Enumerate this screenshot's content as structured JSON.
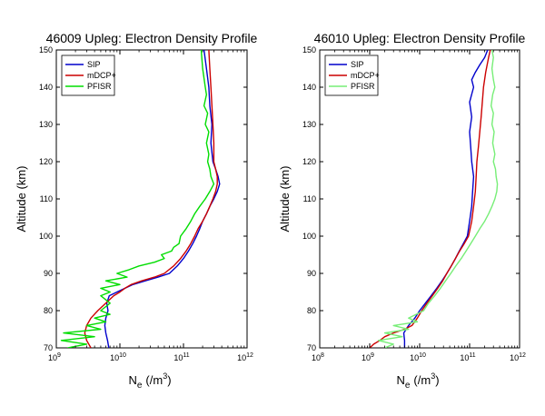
{
  "chart_data": [
    {
      "type": "line",
      "title": "46009 Upleg: Electron Density Profile",
      "xlabel": "N",
      "xlabel_sub": "e",
      "xlabel_unit": "(/m",
      "xlabel_unit_sup": "3",
      "xlabel_unit_end": ")",
      "ylabel": "Altitude (km)",
      "xscale": "log",
      "xlim_exp": [
        9,
        12
      ],
      "ylim": [
        70,
        150
      ],
      "yticks": [
        "70",
        "80",
        "90",
        "100",
        "110",
        "120",
        "130",
        "140",
        "150"
      ],
      "xticks": [
        {
          "base": "10",
          "exp": "9"
        },
        {
          "base": "10",
          "exp": "10"
        },
        {
          "base": "10",
          "exp": "11"
        },
        {
          "base": "10",
          "exp": "12"
        }
      ],
      "legend_position": "top-left",
      "series": [
        {
          "name": "SIP",
          "color": "#0000cc",
          "points": [
            [
              6700000000.0,
              70
            ],
            [
              6400000000.0,
              72
            ],
            [
              6000000000.0,
              74
            ],
            [
              5800000000.0,
              76
            ],
            [
              6000000000.0,
              78
            ],
            [
              6500000000.0,
              80
            ],
            [
              6200000000.0,
              82
            ],
            [
              6800000000.0,
              84
            ],
            [
              9000000000.0,
              85
            ],
            [
              12000000000.0,
              86
            ],
            [
              16000000000.0,
              87
            ],
            [
              25000000000.0,
              88
            ],
            [
              40000000000.0,
              89
            ],
            [
              60000000000.0,
              90
            ],
            [
              80000000000.0,
              92
            ],
            [
              100000000000.0,
              94
            ],
            [
              120000000000.0,
              96
            ],
            [
              140000000000.0,
              98
            ],
            [
              160000000000.0,
              100
            ],
            [
              180000000000.0,
              102
            ],
            [
              200000000000.0,
              104
            ],
            [
              230000000000.0,
              106
            ],
            [
              260000000000.0,
              108
            ],
            [
              300000000000.0,
              110
            ],
            [
              340000000000.0,
              112
            ],
            [
              370000000000.0,
              114
            ],
            [
              350000000000.0,
              116
            ],
            [
              320000000000.0,
              118
            ],
            [
              290000000000.0,
              120
            ],
            [
              270000000000.0,
              125
            ],
            [
              280000000000.0,
              130
            ],
            [
              260000000000.0,
              135
            ],
            [
              250000000000.0,
              140
            ],
            [
              230000000000.0,
              145
            ],
            [
              210000000000.0,
              150
            ]
          ]
        },
        {
          "name": "mDCP+",
          "color": "#cc0000",
          "points": [
            [
              3500000000.0,
              70
            ],
            [
              3000000000.0,
              72
            ],
            [
              2800000000.0,
              74
            ],
            [
              3000000000.0,
              76
            ],
            [
              3500000000.0,
              78
            ],
            [
              4500000000.0,
              80
            ],
            [
              6000000000.0,
              82
            ],
            [
              8000000000.0,
              84
            ],
            [
              10000000000.0,
              85
            ],
            [
              12000000000.0,
              86
            ],
            [
              15000000000.0,
              87
            ],
            [
              22000000000.0,
              88
            ],
            [
              35000000000.0,
              89
            ],
            [
              50000000000.0,
              90
            ],
            [
              70000000000.0,
              92
            ],
            [
              90000000000.0,
              94
            ],
            [
              110000000000.0,
              96
            ],
            [
              130000000000.0,
              98
            ],
            [
              150000000000.0,
              100
            ],
            [
              170000000000.0,
              102
            ],
            [
              200000000000.0,
              104
            ],
            [
              230000000000.0,
              106
            ],
            [
              260000000000.0,
              108
            ],
            [
              290000000000.0,
              110
            ],
            [
              320000000000.0,
              112
            ],
            [
              340000000000.0,
              114
            ],
            [
              340000000000.0,
              116
            ],
            [
              320000000000.0,
              118
            ],
            [
              300000000000.0,
              120
            ],
            [
              300000000000.0,
              125
            ],
            [
              290000000000.0,
              130
            ],
            [
              280000000000.0,
              135
            ],
            [
              270000000000.0,
              140
            ],
            [
              260000000000.0,
              145
            ],
            [
              250000000000.0,
              150
            ]
          ]
        },
        {
          "name": "PFISR",
          "color": "#00dd00",
          "points": [
            [
              1500000000.0,
              70
            ],
            [
              3000000000.0,
              71
            ],
            [
              1200000000.0,
              72
            ],
            [
              4000000000.0,
              73
            ],
            [
              1300000000.0,
              74
            ],
            [
              5000000000.0,
              75
            ],
            [
              3000000000.0,
              76
            ],
            [
              6000000000.0,
              77
            ],
            [
              4000000000.0,
              78
            ],
            [
              7000000000.0,
              79
            ],
            [
              5000000000.0,
              80
            ],
            [
              7000000000.0,
              82
            ],
            [
              5000000000.0,
              84
            ],
            [
              7000000000.0,
              85
            ],
            [
              5000000000.0,
              86
            ],
            [
              10000000000.0,
              87
            ],
            [
              6000000000.0,
              88
            ],
            [
              13000000000.0,
              89
            ],
            [
              9000000000.0,
              90
            ],
            [
              14000000000.0,
              91
            ],
            [
              20000000000.0,
              92
            ],
            [
              35000000000.0,
              93
            ],
            [
              50000000000.0,
              94
            ],
            [
              45000000000.0,
              95
            ],
            [
              65000000000.0,
              96
            ],
            [
              70000000000.0,
              97
            ],
            [
              85000000000.0,
              98
            ],
            [
              90000000000.0,
              100
            ],
            [
              110000000000.0,
              102
            ],
            [
              130000000000.0,
              104
            ],
            [
              150000000000.0,
              106
            ],
            [
              180000000000.0,
              108
            ],
            [
              220000000000.0,
              110
            ],
            [
              260000000000.0,
              112
            ],
            [
              300000000000.0,
              114
            ],
            [
              270000000000.0,
              116
            ],
            [
              260000000000.0,
              118
            ],
            [
              240000000000.0,
              120
            ],
            [
              250000000000.0,
              122
            ],
            [
              230000000000.0,
              125
            ],
            [
              250000000000.0,
              128
            ],
            [
              220000000000.0,
              130
            ],
            [
              240000000000.0,
              133
            ],
            [
              210000000000.0,
              135
            ],
            [
              230000000000.0,
              138
            ],
            [
              220000000000.0,
              140
            ],
            [
              200000000000.0,
              145
            ],
            [
              190000000000.0,
              150
            ]
          ]
        }
      ]
    },
    {
      "type": "line",
      "title": "46010 Upleg: Electron Density Profile",
      "xlabel": "N",
      "xlabel_sub": "e",
      "xlabel_unit": "(/m",
      "xlabel_unit_sup": "3",
      "xlabel_unit_end": ")",
      "ylabel": "Altitude (km)",
      "xscale": "log",
      "xlim_exp": [
        8,
        12
      ],
      "ylim": [
        70,
        150
      ],
      "yticks": [
        "70",
        "80",
        "90",
        "100",
        "110",
        "120",
        "130",
        "140",
        "150"
      ],
      "xticks": [
        {
          "base": "10",
          "exp": "8"
        },
        {
          "base": "10",
          "exp": "9"
        },
        {
          "base": "10",
          "exp": "10"
        },
        {
          "base": "10",
          "exp": "11"
        },
        {
          "base": "10",
          "exp": "12"
        }
      ],
      "legend_position": "top-left",
      "series": [
        {
          "name": "SIP",
          "color": "#0000cc",
          "points": [
            [
              5000000000.0,
              70
            ],
            [
              5000000000.0,
              72
            ],
            [
              4800000000.0,
              74
            ],
            [
              6000000000.0,
              76
            ],
            [
              8000000000.0,
              78
            ],
            [
              10000000000.0,
              80
            ],
            [
              13000000000.0,
              82
            ],
            [
              17000000000.0,
              84
            ],
            [
              22000000000.0,
              86
            ],
            [
              28000000000.0,
              88
            ],
            [
              35000000000.0,
              90
            ],
            [
              43000000000.0,
              92
            ],
            [
              52000000000.0,
              94
            ],
            [
              62000000000.0,
              96
            ],
            [
              75000000000.0,
              98
            ],
            [
              90000000000.0,
              100
            ],
            [
              100000000000.0,
              104
            ],
            [
              110000000000.0,
              108
            ],
            [
              115000000000.0,
              112
            ],
            [
              120000000000.0,
              116
            ],
            [
              110000000000.0,
              120
            ],
            [
              105000000000.0,
              124
            ],
            [
              100000000000.0,
              128
            ],
            [
              110000000000.0,
              132
            ],
            [
              100000000000.0,
              136
            ],
            [
              120000000000.0,
              140
            ],
            [
              110000000000.0,
              142
            ],
            [
              130000000000.0,
              144
            ],
            [
              160000000000.0,
              146
            ],
            [
              200000000000.0,
              148
            ],
            [
              230000000000.0,
              150
            ]
          ]
        },
        {
          "name": "mDCP+",
          "color": "#cc0000",
          "points": [
            [
              1000000000.0,
              70
            ],
            [
              1200000000.0,
              71
            ],
            [
              1600000000.0,
              72
            ],
            [
              2000000000.0,
              73
            ],
            [
              3000000000.0,
              74
            ],
            [
              5000000000.0,
              75
            ],
            [
              7000000000.0,
              76
            ],
            [
              9000000000.0,
              78
            ],
            [
              11000000000.0,
              80
            ],
            [
              14000000000.0,
              82
            ],
            [
              18000000000.0,
              84
            ],
            [
              23000000000.0,
              86
            ],
            [
              29000000000.0,
              88
            ],
            [
              35000000000.0,
              90
            ],
            [
              43000000000.0,
              92
            ],
            [
              52000000000.0,
              94
            ],
            [
              63000000000.0,
              96
            ],
            [
              78000000000.0,
              98
            ],
            [
              95000000000.0,
              100
            ],
            [
              110000000000.0,
              104
            ],
            [
              120000000000.0,
              108
            ],
            [
              130000000000.0,
              112
            ],
            [
              135000000000.0,
              116
            ],
            [
              140000000000.0,
              120
            ],
            [
              150000000000.0,
              124
            ],
            [
              160000000000.0,
              128
            ],
            [
              170000000000.0,
              132
            ],
            [
              180000000000.0,
              136
            ],
            [
              190000000000.0,
              140
            ],
            [
              210000000000.0,
              144
            ],
            [
              240000000000.0,
              148
            ],
            [
              260000000000.0,
              150
            ]
          ]
        },
        {
          "name": "PFISR",
          "color": "#77ee77",
          "points": [
            [
              2000000000.0,
              70
            ],
            [
              3000000000.0,
              71
            ],
            [
              1500000000.0,
              72
            ],
            [
              4500000000.0,
              73
            ],
            [
              2000000000.0,
              74
            ],
            [
              6000000000.0,
              75
            ],
            [
              3000000000.0,
              76
            ],
            [
              9000000000.0,
              77
            ],
            [
              6000000000.0,
              78
            ],
            [
              12000000000.0,
              80
            ],
            [
              15000000000.0,
              82
            ],
            [
              20000000000.0,
              84
            ],
            [
              26000000000.0,
              86
            ],
            [
              33000000000.0,
              88
            ],
            [
              42000000000.0,
              90
            ],
            [
              53000000000.0,
              92
            ],
            [
              68000000000.0,
              94
            ],
            [
              85000000000.0,
              96
            ],
            [
              105000000000.0,
              98
            ],
            [
              130000000000.0,
              100
            ],
            [
              160000000000.0,
              102
            ],
            [
              200000000000.0,
              104
            ],
            [
              240000000000.0,
              106
            ],
            [
              280000000000.0,
              108
            ],
            [
              320000000000.0,
              110
            ],
            [
              350000000000.0,
              112
            ],
            [
              360000000000.0,
              114
            ],
            [
              340000000000.0,
              116
            ],
            [
              330000000000.0,
              118
            ],
            [
              300000000000.0,
              120
            ],
            [
              320000000000.0,
              122
            ],
            [
              290000000000.0,
              125
            ],
            [
              310000000000.0,
              128
            ],
            [
              280000000000.0,
              130
            ],
            [
              300000000000.0,
              133
            ],
            [
              270000000000.0,
              135
            ],
            [
              290000000000.0,
              138
            ],
            [
              320000000000.0,
              140
            ],
            [
              300000000000.0,
              142
            ],
            [
              280000000000.0,
              145
            ],
            [
              300000000000.0,
              148
            ],
            [
              280000000000.0,
              150
            ]
          ]
        }
      ]
    }
  ]
}
